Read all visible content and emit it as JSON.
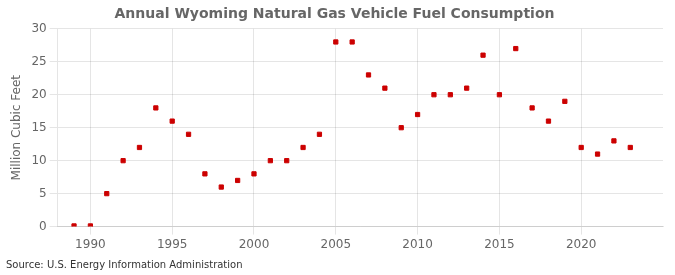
{
  "chart_data": {
    "type": "scatter",
    "title": "Annual Wyoming Natural Gas Vehicle Fuel Consumption",
    "ylabel": "Million Cubic Feet",
    "annotation": "Source: U.S. Energy Information Administration",
    "x": [
      1989,
      1990,
      1991,
      1992,
      1993,
      1994,
      1995,
      1996,
      1997,
      1998,
      1999,
      2000,
      2001,
      2002,
      2003,
      2004,
      2005,
      2006,
      2007,
      2008,
      2009,
      2010,
      2011,
      2012,
      2013,
      2014,
      2015,
      2016,
      2017,
      2018,
      2019,
      2020,
      2021,
      2022,
      2023
    ],
    "values": [
      0.1,
      0.1,
      5.0,
      10.0,
      12.0,
      18.0,
      16.0,
      14.0,
      8.0,
      6.0,
      7.0,
      8.0,
      10.0,
      10.0,
      12.0,
      14.0,
      28.0,
      28.0,
      23.0,
      21.0,
      15.0,
      17.0,
      20.0,
      20.0,
      21.0,
      26.0,
      20.0,
      27.0,
      18.0,
      16.0,
      19.0,
      12.0,
      11.0,
      13.0,
      12.0
    ],
    "color": "#cc0000",
    "marker": "square",
    "xlim": [
      1988,
      2025
    ],
    "ylim": [
      0,
      30
    ],
    "xticks": [
      1990,
      1995,
      2000,
      2005,
      2010,
      2015,
      2020
    ],
    "yticks": [
      0,
      5,
      10,
      15,
      20,
      25,
      30
    ],
    "grid": true
  }
}
